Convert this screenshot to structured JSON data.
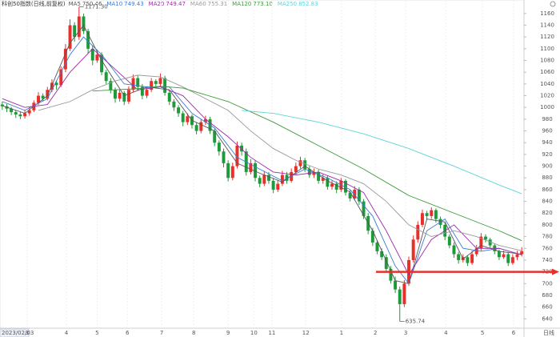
{
  "chart_data": {
    "type": "candlestick",
    "title": "科创50指数(日线,前复权)",
    "start_date": "2023/02/03",
    "period_label": "日线",
    "ylim": [
      624,
      1183
    ],
    "yticks": [
      640,
      660,
      680,
      700,
      720,
      740,
      760,
      780,
      800,
      820,
      840,
      860,
      880,
      900,
      920,
      940,
      960,
      980,
      1000,
      1020,
      1040,
      1060,
      1080,
      1100,
      1120,
      1140,
      1160
    ],
    "xlim": [
      0,
      116
    ],
    "xticks": [
      {
        "value": 6,
        "label": "3"
      },
      {
        "value": 14.7,
        "label": "4"
      },
      {
        "value": 21.5,
        "label": "5"
      },
      {
        "value": 28.2,
        "label": "6"
      },
      {
        "value": 35.8,
        "label": "7"
      },
      {
        "value": 42.9,
        "label": "8"
      },
      {
        "value": 50.5,
        "label": "9"
      },
      {
        "value": 56.2,
        "label": "10"
      },
      {
        "value": 60.2,
        "label": "11"
      },
      {
        "value": 67.7,
        "label": "12"
      },
      {
        "value": 75.6,
        "label": "1"
      },
      {
        "value": 83.1,
        "label": "2"
      },
      {
        "value": 89.8,
        "label": "3"
      },
      {
        "value": 98.7,
        "label": "4"
      },
      {
        "value": 106.8,
        "label": "5"
      },
      {
        "value": 113.7,
        "label": "6"
      }
    ],
    "up_color": "#e8302a",
    "down_color": "#1f9a3a",
    "candles": [
      [
        1005,
        1010,
        996,
        1002
      ],
      [
        1002,
        1006,
        992,
        998
      ],
      [
        998,
        1001,
        987,
        992
      ],
      [
        992,
        995,
        982,
        988
      ],
      [
        988,
        992,
        980,
        985
      ],
      [
        985,
        996,
        981,
        990
      ],
      [
        990,
        1000,
        986,
        995
      ],
      [
        995,
        1012,
        992,
        1008
      ],
      [
        1008,
        1026,
        1004,
        1020
      ],
      [
        1020,
        1024,
        1010,
        1015
      ],
      [
        1015,
        1035,
        1012,
        1030
      ],
      [
        1030,
        1048,
        1026,
        1042
      ],
      [
        1042,
        1046,
        1030,
        1038
      ],
      [
        1038,
        1070,
        1035,
        1065
      ],
      [
        1065,
        1108,
        1060,
        1100
      ],
      [
        1100,
        1150,
        1096,
        1140
      ],
      [
        1140,
        1145,
        1112,
        1120
      ],
      [
        1120,
        1171.3,
        1115,
        1155
      ],
      [
        1155,
        1160,
        1125,
        1130
      ],
      [
        1130,
        1134,
        1092,
        1100
      ],
      [
        1100,
        1106,
        1072,
        1080
      ],
      [
        1080,
        1098,
        1076,
        1090
      ],
      [
        1090,
        1094,
        1055,
        1060
      ],
      [
        1060,
        1064,
        1040,
        1045
      ],
      [
        1045,
        1050,
        1024,
        1030
      ],
      [
        1030,
        1034,
        1008,
        1015
      ],
      [
        1015,
        1030,
        1010,
        1025
      ],
      [
        1025,
        1028,
        1004,
        1010
      ],
      [
        1010,
        1036,
        1006,
        1030
      ],
      [
        1030,
        1056,
        1026,
        1050
      ],
      [
        1050,
        1054,
        1030,
        1035
      ],
      [
        1035,
        1040,
        1014,
        1020
      ],
      [
        1020,
        1036,
        1016,
        1030
      ],
      [
        1030,
        1050,
        1026,
        1045
      ],
      [
        1045,
        1048,
        1034,
        1040
      ],
      [
        1040,
        1058,
        1036,
        1050
      ],
      [
        1050,
        1054,
        1020,
        1025
      ],
      [
        1025,
        1030,
        1004,
        1010
      ],
      [
        1010,
        1014,
        994,
        1000
      ],
      [
        1000,
        1004,
        984,
        990
      ],
      [
        990,
        994,
        968,
        975
      ],
      [
        975,
        990,
        970,
        985
      ],
      [
        985,
        988,
        964,
        970
      ],
      [
        970,
        974,
        954,
        960
      ],
      [
        960,
        980,
        956,
        975
      ],
      [
        975,
        986,
        970,
        980
      ],
      [
        980,
        984,
        955,
        960
      ],
      [
        960,
        964,
        934,
        940
      ],
      [
        940,
        944,
        918,
        925
      ],
      [
        925,
        930,
        898,
        905
      ],
      [
        905,
        910,
        874,
        880
      ],
      [
        880,
        906,
        876,
        900
      ],
      [
        900,
        942,
        896,
        935
      ],
      [
        935,
        940,
        918,
        925
      ],
      [
        925,
        930,
        884,
        890
      ],
      [
        890,
        912,
        886,
        905
      ],
      [
        905,
        910,
        874,
        880
      ],
      [
        880,
        884,
        864,
        870
      ],
      [
        870,
        892,
        866,
        885
      ],
      [
        885,
        890,
        870,
        875
      ],
      [
        875,
        880,
        854,
        860
      ],
      [
        860,
        876,
        856,
        870
      ],
      [
        870,
        892,
        866,
        885
      ],
      [
        885,
        890,
        870,
        875
      ],
      [
        875,
        896,
        872,
        890
      ],
      [
        890,
        906,
        886,
        900
      ],
      [
        900,
        916,
        896,
        910
      ],
      [
        910,
        914,
        890,
        895
      ],
      [
        895,
        900,
        880,
        885
      ],
      [
        885,
        896,
        880,
        890
      ],
      [
        890,
        894,
        870,
        875
      ],
      [
        875,
        886,
        870,
        880
      ],
      [
        880,
        884,
        860,
        865
      ],
      [
        865,
        876,
        860,
        870
      ],
      [
        870,
        874,
        854,
        860
      ],
      [
        860,
        880,
        856,
        875
      ],
      [
        875,
        878,
        850,
        855
      ],
      [
        855,
        860,
        840,
        845
      ],
      [
        845,
        866,
        842,
        860
      ],
      [
        860,
        864,
        834,
        840
      ],
      [
        840,
        844,
        810,
        815
      ],
      [
        815,
        820,
        784,
        790
      ],
      [
        790,
        795,
        764,
        770
      ],
      [
        770,
        774,
        750,
        755
      ],
      [
        755,
        760,
        740,
        745
      ],
      [
        745,
        750,
        720,
        725
      ],
      [
        725,
        730,
        700,
        705
      ],
      [
        705,
        712,
        684,
        690
      ],
      [
        690,
        695,
        635.74,
        665
      ],
      [
        665,
        706,
        660,
        700
      ],
      [
        700,
        746,
        696,
        740
      ],
      [
        740,
        782,
        736,
        775
      ],
      [
        775,
        806,
        770,
        800
      ],
      [
        800,
        826,
        796,
        820
      ],
      [
        820,
        824,
        808,
        815
      ],
      [
        815,
        830,
        810,
        825
      ],
      [
        825,
        828,
        804,
        810
      ],
      [
        810,
        814,
        794,
        800
      ],
      [
        800,
        804,
        774,
        780
      ],
      [
        780,
        784,
        760,
        765
      ],
      [
        765,
        770,
        744,
        750
      ],
      [
        750,
        754,
        734,
        740
      ],
      [
        740,
        750,
        736,
        745
      ],
      [
        745,
        748,
        730,
        735
      ],
      [
        735,
        756,
        732,
        750
      ],
      [
        750,
        766,
        746,
        760
      ],
      [
        760,
        786,
        756,
        780
      ],
      [
        780,
        784,
        770,
        775
      ],
      [
        775,
        778,
        760,
        765
      ],
      [
        765,
        768,
        750,
        755
      ],
      [
        755,
        758,
        740,
        745
      ],
      [
        745,
        756,
        742,
        750
      ],
      [
        750,
        754,
        730,
        735
      ],
      [
        735,
        750,
        732,
        745
      ],
      [
        745,
        756,
        740,
        750
      ],
      [
        750,
        762,
        746,
        755
      ]
    ],
    "series": [
      {
        "name": "MA5",
        "color": "#555555",
        "latest": {
          "value": 750.46,
          "label": "750.46"
        },
        "x": [
          0,
          5,
          10,
          15,
          18,
          22,
          27,
          32,
          37,
          42,
          47,
          52,
          57,
          62,
          67,
          72,
          77,
          82,
          87,
          90,
          94,
          98,
          102,
          106,
          110,
          115
        ],
        "values": [
          1003,
          990,
          1020,
          1110,
          1140,
          1080,
          1020,
          1035,
          1030,
          978,
          960,
          905,
          888,
          873,
          900,
          875,
          856,
          790,
          705,
          700,
          810,
          805,
          742,
          765,
          755,
          750
        ]
      },
      {
        "name": "MA10",
        "color": "#3a7bd5",
        "latest": {
          "value": 749.43,
          "label": "749.43"
        },
        "x": [
          0,
          5,
          10,
          15,
          18,
          22,
          27,
          32,
          37,
          42,
          47,
          52,
          57,
          62,
          67,
          72,
          77,
          82,
          87,
          90,
          94,
          98,
          102,
          106,
          110,
          115
        ],
        "values": [
          1010,
          995,
          1015,
          1090,
          1120,
          1090,
          1040,
          1035,
          1035,
          990,
          965,
          915,
          895,
          875,
          895,
          880,
          860,
          815,
          730,
          700,
          790,
          810,
          760,
          755,
          760,
          749
        ]
      },
      {
        "name": "MA20",
        "color": "#a02aa8",
        "latest": {
          "value": 749.47,
          "label": "749.47"
        },
        "x": [
          0,
          5,
          10,
          15,
          20,
          25,
          30,
          35,
          40,
          45,
          50,
          55,
          60,
          65,
          70,
          75,
          80,
          85,
          90,
          95,
          100,
          105,
          110,
          115
        ],
        "values": [
          1015,
          1000,
          1005,
          1060,
          1100,
          1065,
          1030,
          1035,
          1020,
          980,
          950,
          915,
          890,
          885,
          890,
          875,
          855,
          790,
          715,
          775,
          800,
          760,
          760,
          749
        ]
      },
      {
        "name": "MA60",
        "color": "#999999",
        "latest": {
          "value": 755.31,
          "label": "755.31"
        },
        "x": [
          8,
          15,
          20,
          25,
          30,
          35,
          40,
          45,
          50,
          55,
          60,
          65,
          70,
          75,
          80,
          85,
          90,
          95,
          100,
          105,
          110,
          115
        ],
        "values": [
          995,
          1010,
          1030,
          1045,
          1055,
          1052,
          1035,
          1015,
          995,
          960,
          930,
          910,
          895,
          885,
          870,
          840,
          800,
          780,
          790,
          780,
          765,
          756
        ]
      },
      {
        "name": "MA120",
        "color": "#3c9a3c",
        "latest": {
          "value": 773.1,
          "label": "773.10"
        },
        "x": [
          20,
          30,
          35,
          40,
          50,
          60,
          70,
          80,
          90,
          100,
          110,
          115
        ],
        "values": [
          1028,
          1032,
          1036,
          1033,
          1010,
          975,
          935,
          895,
          850,
          820,
          790,
          773
        ]
      },
      {
        "name": "MA250",
        "color": "#5fd3d8",
        "latest": {
          "value": 852.83,
          "label": "852.83"
        },
        "x": [
          53,
          60,
          70,
          80,
          90,
          100,
          110,
          115
        ],
        "values": [
          995,
          990,
          975,
          955,
          930,
          900,
          868,
          853
        ]
      }
    ],
    "annotations": [
      {
        "index": 17,
        "value": 1171.3,
        "label": "1171.30"
      },
      {
        "index": 88,
        "value": 635.74,
        "label": "635.74"
      }
    ],
    "arrow": {
      "value": 720,
      "color": "#e8302a"
    }
  }
}
